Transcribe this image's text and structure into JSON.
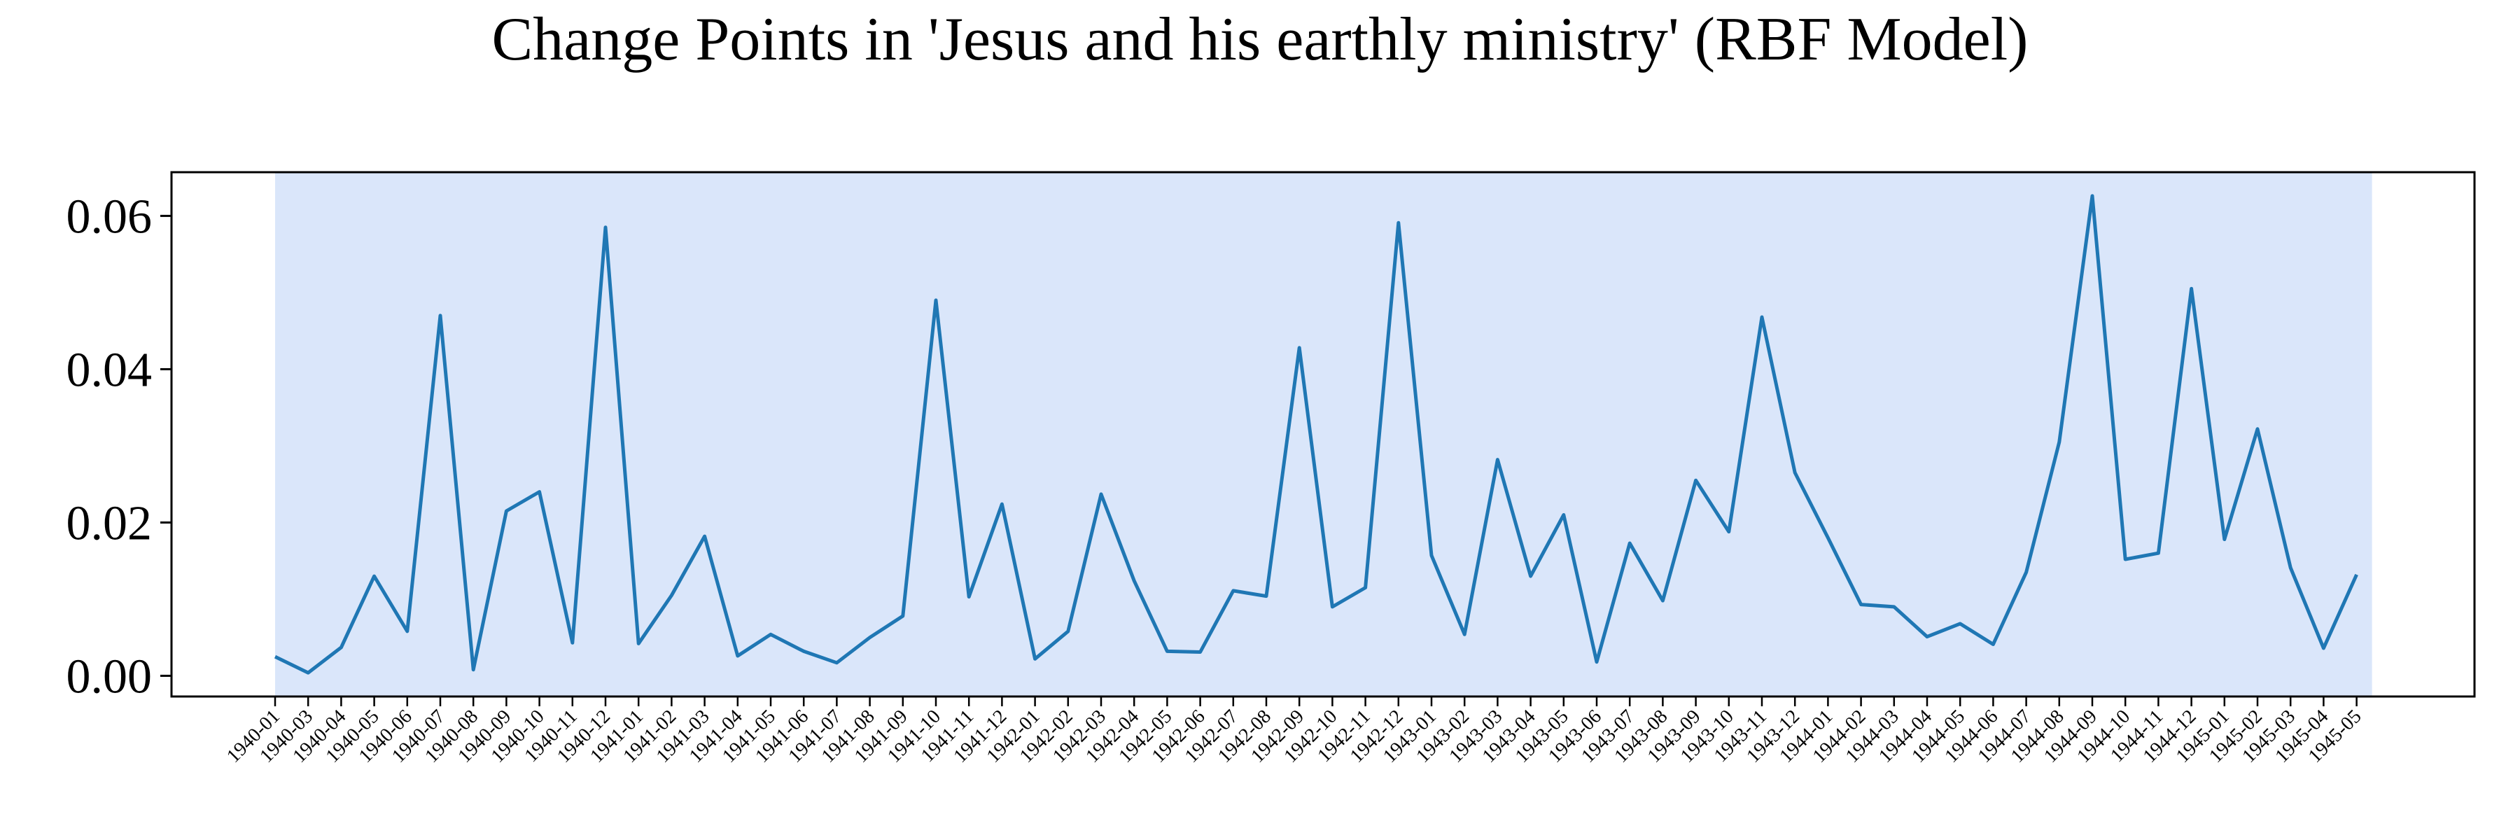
{
  "chart_data": {
    "type": "line",
    "title": "Change Points in 'Jesus and his earthly ministry' (RBF Model)",
    "xlabel": "",
    "ylabel": "",
    "ylim": [
      -0.0027,
      0.0657
    ],
    "yticks": [
      0.0,
      0.02,
      0.04,
      0.06
    ],
    "ytick_labels": [
      "0.00",
      "0.02",
      "0.04",
      "0.06"
    ],
    "grid": false,
    "x": [
      "1940-01",
      "1940-03",
      "1940-04",
      "1940-05",
      "1940-06",
      "1940-07",
      "1940-08",
      "1940-09",
      "1940-10",
      "1940-11",
      "1940-12",
      "1941-01",
      "1941-02",
      "1941-03",
      "1941-04",
      "1941-05",
      "1941-06",
      "1941-07",
      "1941-08",
      "1941-09",
      "1941-10",
      "1941-11",
      "1941-12",
      "1942-01",
      "1942-02",
      "1942-03",
      "1942-04",
      "1942-05",
      "1942-06",
      "1942-07",
      "1942-08",
      "1942-09",
      "1942-10",
      "1942-11",
      "1942-12",
      "1943-01",
      "1943-02",
      "1943-03",
      "1943-04",
      "1943-05",
      "1943-06",
      "1943-07",
      "1943-08",
      "1943-09",
      "1943-10",
      "1943-11",
      "1943-12",
      "1944-01",
      "1944-02",
      "1944-03",
      "1944-04",
      "1944-05",
      "1944-06",
      "1944-07",
      "1944-08",
      "1944-09",
      "1944-10",
      "1944-11",
      "1944-12",
      "1945-01",
      "1945-02",
      "1945-03",
      "1945-04",
      "1945-05"
    ],
    "series": [
      {
        "color": "#1f77b4",
        "values": [
          0.0025,
          0.0004,
          0.0037,
          0.013,
          0.0058,
          0.047,
          0.0008,
          0.0215,
          0.024,
          0.0043,
          0.0585,
          0.0042,
          0.0105,
          0.0182,
          0.0026,
          0.0054,
          0.0032,
          0.0017,
          0.005,
          0.0078,
          0.049,
          0.0103,
          0.0224,
          0.0022,
          0.0058,
          0.0237,
          0.0124,
          0.0032,
          0.0031,
          0.0111,
          0.0104,
          0.0428,
          0.009,
          0.0115,
          0.0591,
          0.0157,
          0.0054,
          0.0282,
          0.013,
          0.021,
          0.0018,
          0.0173,
          0.0098,
          0.0255,
          0.0188,
          0.0468,
          0.0265,
          0.018,
          0.0093,
          0.009,
          0.0051,
          0.0068,
          0.0041,
          0.0135,
          0.0305,
          0.0626,
          0.0152,
          0.016,
          0.0505,
          0.0178,
          0.0322,
          0.0141,
          0.0036,
          0.0132
        ]
      }
    ],
    "shaded_span": {
      "from": "1940-01",
      "to": "1945-05",
      "color": "#dae6fa"
    }
  }
}
